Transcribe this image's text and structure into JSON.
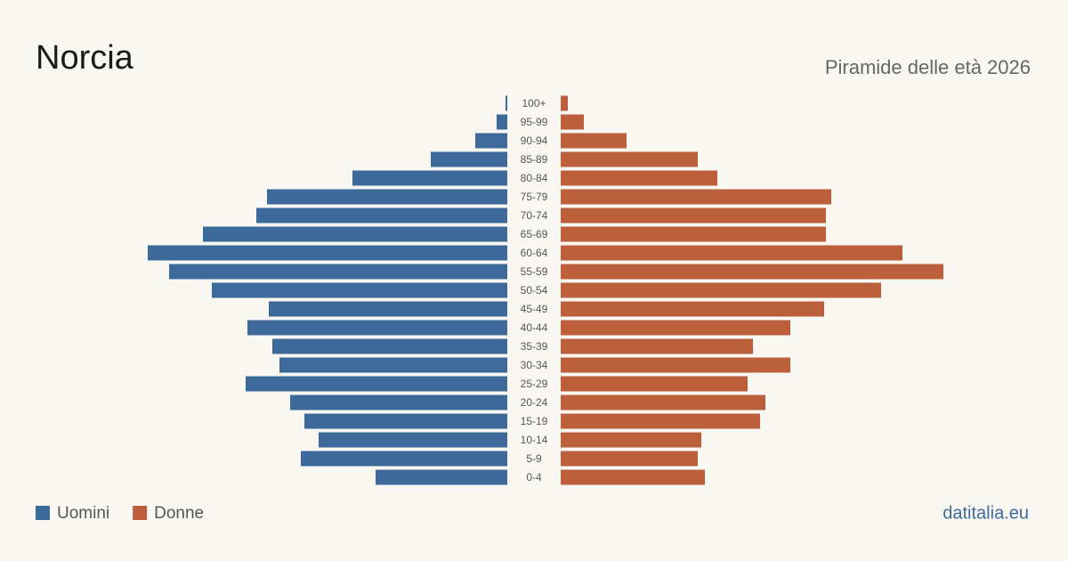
{
  "chart_data": {
    "type": "pyramid",
    "title": "Norcia",
    "subtitle": "Piramide delle età 2026",
    "source": "datitalia.eu",
    "categories": [
      "100+",
      "95-99",
      "90-94",
      "85-89",
      "80-84",
      "75-79",
      "70-74",
      "65-69",
      "60-64",
      "55-59",
      "50-54",
      "45-49",
      "40-44",
      "35-39",
      "30-34",
      "25-29",
      "20-24",
      "15-19",
      "10-14",
      "5-9",
      "0-4"
    ],
    "series": [
      {
        "name": "Uomini",
        "color": "#3d6a9b",
        "values": [
          1,
          6,
          18,
          43,
          87,
          135,
          141,
          171,
          202,
          190,
          166,
          134,
          146,
          132,
          128,
          147,
          122,
          114,
          106,
          116,
          74
        ]
      },
      {
        "name": "Donne",
        "color": "#bb5f3d",
        "values": [
          4,
          13,
          37,
          77,
          88,
          152,
          149,
          149,
          192,
          215,
          180,
          148,
          129,
          108,
          129,
          105,
          115,
          112,
          79,
          77,
          81
        ]
      }
    ]
  }
}
